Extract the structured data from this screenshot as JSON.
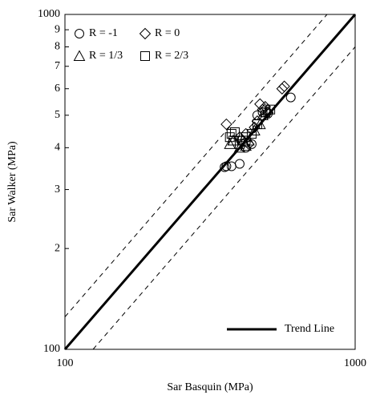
{
  "chart_data": {
    "type": "scatter",
    "x_label": "Sar Basquin (MPa)",
    "y_label": "Sar Walker (MPa)",
    "xscale": "log",
    "yscale": "log",
    "xlim": [
      100,
      1000
    ],
    "ylim": [
      100,
      1000
    ],
    "xticks": [
      100,
      1000
    ],
    "yticks": [
      100,
      {
        "value": 200,
        "label": "2"
      },
      {
        "value": 300,
        "label": "3"
      },
      {
        "value": 400,
        "label": "4"
      },
      {
        "value": 500,
        "label": "5"
      },
      {
        "value": 600,
        "label": "6"
      },
      {
        "value": 700,
        "label": "7"
      },
      {
        "value": 800,
        "label": "8"
      },
      {
        "value": 900,
        "label": "9"
      },
      1000
    ],
    "legend": "upper left",
    "line_legend": "lower right",
    "series": [
      {
        "name": "R = -1",
        "marker": "circle",
        "color": "#000000",
        "x": [
          355,
          360,
          375,
          400,
          405,
          420,
          460,
          480,
          500,
          600,
          420,
          440
        ],
        "values": [
          350,
          352,
          352,
          358,
          420,
          415,
          500,
          510,
          505,
          565,
          400,
          410
        ]
      },
      {
        "name": "R = 0",
        "marker": "diamond",
        "color": "#000000",
        "x": [
          360,
          400,
          420,
          450,
          470,
          480,
          490,
          560,
          570,
          500,
          430,
          460
        ],
        "values": [
          470,
          430,
          440,
          460,
          540,
          520,
          530,
          600,
          610,
          510,
          410,
          480
        ]
      },
      {
        "name": "R = 1/3",
        "marker": "triangle",
        "color": "#000000",
        "x": [
          370,
          380,
          400,
          410,
          430,
          450,
          470,
          480,
          500,
          420
        ],
        "values": [
          410,
          420,
          400,
          420,
          420,
          450,
          470,
          500,
          520,
          405
        ]
      },
      {
        "name": "R = 2/3",
        "marker": "square",
        "color": "#000000",
        "x": [
          370,
          375,
          380,
          385,
          400,
          420,
          440,
          460,
          490,
          510,
          410
        ],
        "values": [
          430,
          440,
          420,
          445,
          410,
          430,
          440,
          470,
          510,
          520,
          420
        ]
      }
    ],
    "lines": [
      {
        "name": "Trend Line",
        "x": [
          100,
          1000
        ],
        "values": [
          100,
          1000
        ],
        "style": "solid",
        "color": "#000000"
      },
      {
        "x": [
          100,
          800
        ],
        "values": [
          125,
          1000
        ],
        "style": "dashed",
        "color": "#000000"
      },
      {
        "x": [
          125,
          1000
        ],
        "values": [
          100,
          800
        ],
        "style": "dashed",
        "color": "#000000"
      }
    ]
  }
}
